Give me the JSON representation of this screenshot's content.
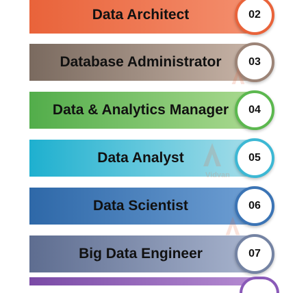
{
  "rows": [
    {
      "label": "Data Architect",
      "number": "02",
      "bar_from": "#e9633a",
      "bar_to": "#f48e6d",
      "ring": "#e9633a"
    },
    {
      "label": "Database Administrator",
      "number": "03",
      "bar_from": "#7a6a5f",
      "bar_to": "#c7b3a6",
      "ring": "#9c8477"
    },
    {
      "label": "Data & Analytics Manager",
      "number": "04",
      "bar_from": "#52ad4a",
      "bar_to": "#a9d98f",
      "ring": "#5cb84f"
    },
    {
      "label": "Data Analyst",
      "number": "05",
      "bar_from": "#1eb0cf",
      "bar_to": "#a4dde9",
      "ring": "#3db8d4"
    },
    {
      "label": "Data Scientist",
      "number": "06",
      "bar_from": "#2e68a8",
      "bar_to": "#6d9ed3",
      "ring": "#3b74b5"
    },
    {
      "label": "Big Data Engineer",
      "number": "07",
      "bar_from": "#5e6d90",
      "bar_to": "#a7b3cd",
      "ring": "#7483a3"
    }
  ],
  "watermark_text": "Vidvan"
}
